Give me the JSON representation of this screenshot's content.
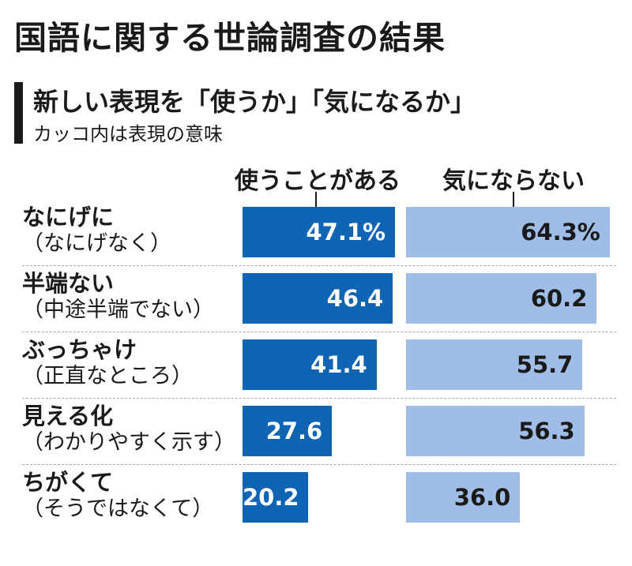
{
  "header": {
    "title": "国語に関する世論調査の結果",
    "subtitle": "新しい表現を「使うか」「気になるか」",
    "note": "カッコ内は表現の意味"
  },
  "chart_data": {
    "type": "bar",
    "orientation": "horizontal",
    "categories": [
      "なにげに",
      "半端ない",
      "ぶっちゃけ",
      "見える化",
      "ちがくて"
    ],
    "category_meanings": [
      "（なにげなく）",
      "（中途半端でない）",
      "（正直なところ）",
      "（わかりやすく示す）",
      "（そうではなくて）"
    ],
    "series": [
      {
        "name": "使うことがある",
        "values": [
          47.1,
          46.4,
          41.4,
          27.6,
          20.2
        ],
        "labels": [
          "47.1%",
          "46.4",
          "41.4",
          "27.6",
          "20.2"
        ],
        "color": "#0f64b4"
      },
      {
        "name": "気にならない",
        "values": [
          64.3,
          60.2,
          55.7,
          56.3,
          36.0
        ],
        "labels": [
          "64.3%",
          "60.2",
          "55.7",
          "56.3",
          "36.0"
        ],
        "color": "#9fbde6"
      }
    ],
    "grid": false,
    "legend": "column-headers"
  }
}
